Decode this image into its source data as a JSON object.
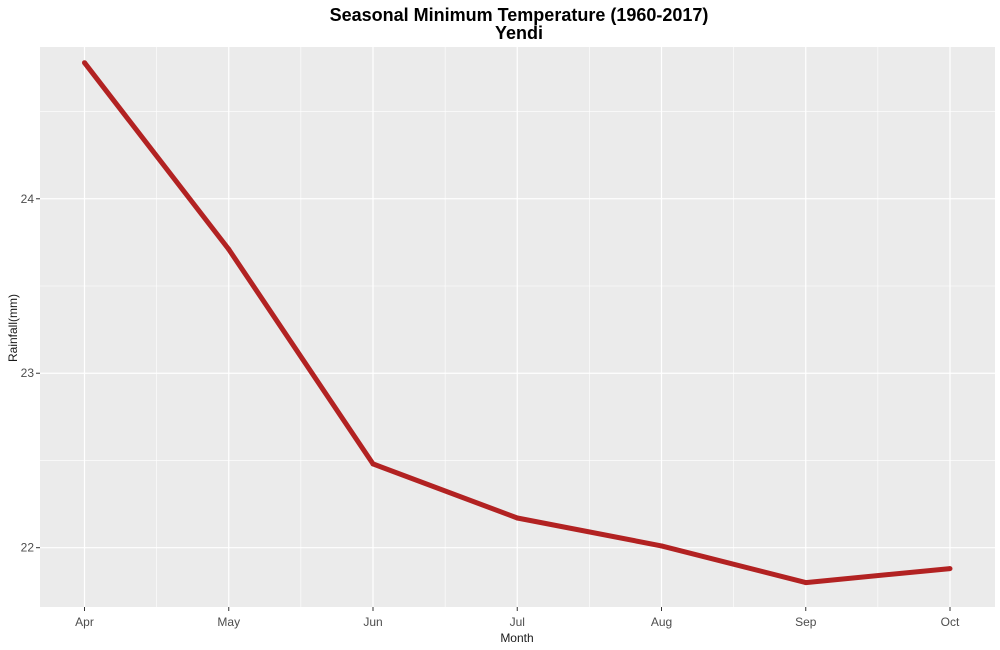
{
  "chart_data": {
    "type": "line",
    "title": "Seasonal Minimum Temperature (1960-2017)",
    "subtitle": "Yendi",
    "xlabel": "Month",
    "ylabel": "Rainfall(mm)",
    "categories": [
      "Apr",
      "May",
      "Jun",
      "Jul",
      "Aug",
      "Sep",
      "Oct"
    ],
    "series": [
      {
        "values": [
          24.78,
          23.71,
          22.48,
          22.17,
          22.01,
          21.8,
          21.88
        ]
      }
    ],
    "yticks": [
      22,
      23,
      24
    ],
    "ylim": [
      21.66,
      24.87
    ],
    "grid": true,
    "legend": "none",
    "colors": {
      "panel": "#ebebeb",
      "grid": "#ffffff",
      "line": "#b22222",
      "tick_text": "#4d4d4d"
    }
  }
}
